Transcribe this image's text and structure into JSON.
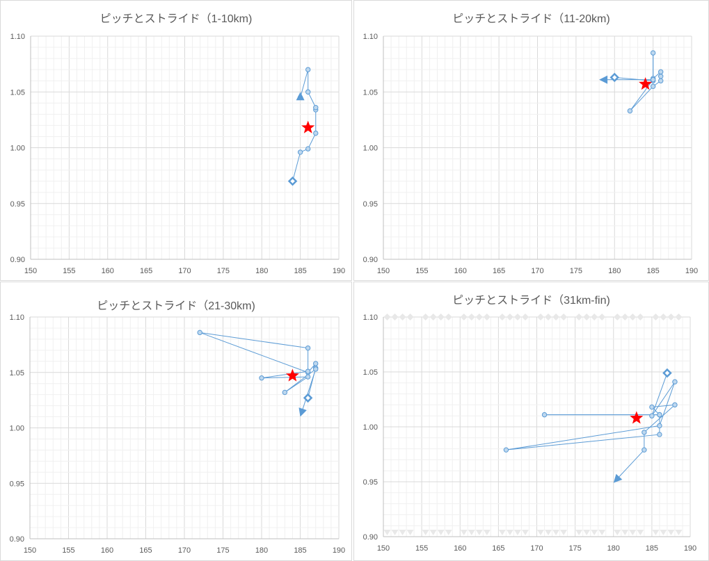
{
  "chart_data": [
    {
      "type": "scatter",
      "title": "ピッチとストライド（1-10km)",
      "xlabel": "",
      "ylabel": "",
      "xlim": [
        150,
        190
      ],
      "ylim": [
        0.9,
        1.1
      ],
      "xticks": [
        "150",
        "155",
        "160",
        "165",
        "170",
        "175",
        "180",
        "185",
        "190"
      ],
      "yticks": [
        "0.90",
        "0.95",
        "1.00",
        "1.05",
        "1.10"
      ],
      "grid": true,
      "series": [
        {
          "points": [
            [
              184,
              0.97
            ],
            [
              185,
              0.996
            ],
            [
              186,
              0.999
            ],
            [
              187,
              1.013
            ],
            [
              187,
              1.034
            ],
            [
              187,
              1.036
            ],
            [
              186,
              1.05
            ],
            [
              186,
              1.07
            ],
            [
              185,
              1.045
            ],
            [
              185,
              1.05
            ]
          ],
          "start_marker": "diamond",
          "end_marker": "arrow",
          "color": "#5b9bd5"
        }
      ],
      "stars": [
        [
          186,
          1.018
        ]
      ]
    },
    {
      "type": "scatter",
      "title": "ピッチとストライド（11-20km)",
      "xlabel": "",
      "ylabel": "",
      "xlim": [
        150,
        190
      ],
      "ylim": [
        0.9,
        1.1
      ],
      "xticks": [
        "150",
        "155",
        "160",
        "165",
        "170",
        "175",
        "180",
        "185",
        "190"
      ],
      "yticks": [
        "0.90",
        "0.95",
        "1.00",
        "1.05",
        "1.10"
      ],
      "grid": true,
      "series": [
        {
          "points": [
            [
              180,
              1.063
            ],
            [
              185,
              1.06
            ],
            [
              185,
              1.085
            ],
            [
              185,
              1.062
            ],
            [
              186,
              1.068
            ],
            [
              186,
              1.064
            ],
            [
              186,
              1.06
            ],
            [
              185,
              1.055
            ],
            [
              182,
              1.033
            ],
            [
              185,
              1.061
            ],
            [
              178,
              1.061
            ]
          ],
          "start_marker": "diamond",
          "end_marker": "arrow",
          "color": "#5b9bd5"
        }
      ],
      "stars": [
        [
          184,
          1.057
        ]
      ]
    },
    {
      "type": "scatter",
      "title": "ピッチとストライド（21-30km)",
      "xlabel": "",
      "ylabel": "",
      "xlim": [
        150,
        190
      ],
      "ylim": [
        0.9,
        1.1
      ],
      "xticks": [
        "150",
        "155",
        "160",
        "165",
        "170",
        "175",
        "180",
        "185",
        "190"
      ],
      "yticks": [
        "0.90",
        "0.95",
        "1.00",
        "1.05",
        "1.10"
      ],
      "grid": true,
      "series": [
        {
          "points": [
            [
              186,
              1.027
            ],
            [
              187,
              1.054
            ],
            [
              187,
              1.058
            ],
            [
              186,
              1.05
            ],
            [
              172,
              1.086
            ],
            [
              186,
              1.072
            ],
            [
              186,
              1.051
            ],
            [
              180,
              1.045
            ],
            [
              186,
              1.046
            ],
            [
              183,
              1.032
            ],
            [
              187,
              1.053
            ],
            [
              185,
              1.01
            ]
          ],
          "start_marker": "diamond",
          "end_marker": "arrow",
          "color": "#5b9bd5"
        }
      ],
      "stars": [
        [
          184,
          1.047
        ]
      ]
    },
    {
      "type": "scatter",
      "title": "ピッチとストライド（31km-fin)",
      "xlabel": "",
      "ylabel": "",
      "xlim": [
        150,
        190
      ],
      "ylim": [
        0.9,
        1.1
      ],
      "xticks": [
        "150",
        "155",
        "160",
        "165",
        "170",
        "175",
        "180",
        "185",
        "190"
      ],
      "yticks": [
        "0.90",
        "0.95",
        "1.00",
        "1.05",
        "1.10"
      ],
      "grid": true,
      "series": [
        {
          "points": [
            [
              187,
              1.049
            ],
            [
              185,
              1.01
            ],
            [
              188,
              1.041
            ],
            [
              186,
              1.001
            ],
            [
              166,
              0.979
            ],
            [
              186,
              0.993
            ],
            [
              186,
              1.011
            ],
            [
              171,
              1.011
            ],
            [
              186,
              1.011
            ],
            [
              185,
              1.018
            ],
            [
              188,
              1.02
            ],
            [
              184,
              0.995
            ],
            [
              184,
              0.979
            ],
            [
              180,
              0.949
            ]
          ],
          "start_marker": "diamond",
          "end_marker": "arrow",
          "color": "#5b9bd5"
        }
      ],
      "stars": [
        [
          183,
          1.008
        ]
      ],
      "ghost_diamonds_y": 1.1,
      "ghost_triangles_y": 0.9
    }
  ],
  "colors": {
    "series": "#5b9bd5",
    "marker_fill": "#bdd7ee",
    "star": "#ff0000",
    "grid_major": "#d9d9d9",
    "grid_minor": "#f0f0f0",
    "ghost": "#e8e8e8"
  }
}
